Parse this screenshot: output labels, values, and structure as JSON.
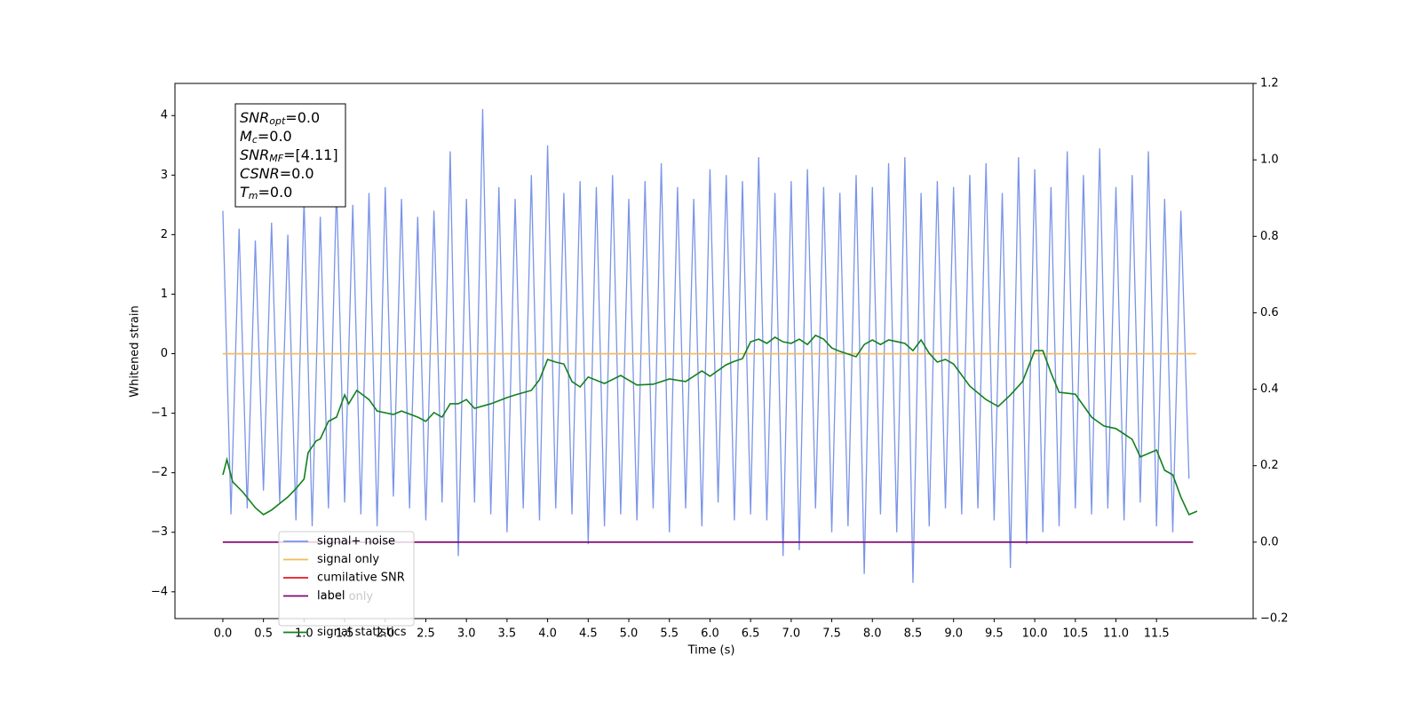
{
  "chart_data": {
    "type": "line",
    "xlabel": "Time (s)",
    "ylabel": "Whitened strain",
    "xlim": [
      -0.59,
      12.69
    ],
    "ylim": [
      -4.45,
      4.54
    ],
    "y2lim": [
      -0.2,
      1.2
    ],
    "xticks": [
      {
        "value": 0,
        "label": "0.0"
      },
      0.5,
      {
        "value": 1,
        "label": "1.0"
      },
      1.5,
      {
        "value": 2,
        "label": "2.0"
      },
      2.5,
      {
        "value": 3,
        "label": "3.0"
      },
      3.5,
      {
        "value": 4,
        "label": "4.0"
      },
      4.5,
      {
        "value": 5,
        "label": "5.0"
      },
      5.5,
      {
        "value": 6,
        "label": "6.0"
      },
      6.5,
      {
        "value": 7,
        "label": "7.0"
      },
      7.5,
      {
        "value": 8,
        "label": "8.0"
      },
      8.5,
      {
        "value": 9,
        "label": "9.0"
      },
      9.5,
      {
        "value": 10,
        "label": "10.0"
      },
      10.5,
      {
        "value": 11,
        "label": "11.0"
      },
      11.5
    ],
    "yticks": [
      {
        "value": -4,
        "label": "−4"
      },
      {
        "value": -3,
        "label": "−3"
      },
      {
        "value": -2,
        "label": "−2"
      },
      {
        "value": -1,
        "label": "−1"
      },
      0,
      1,
      2,
      3,
      4
    ],
    "y2ticks": [
      {
        "value": -0.2,
        "label": "−0.2"
      },
      {
        "value": 0,
        "label": "0.0"
      },
      0.2,
      0.4,
      0.6,
      0.8,
      {
        "value": 1,
        "label": "1.0"
      },
      1.2
    ],
    "legend": "lower left",
    "legend_hidden_text": "label only",
    "annotation": [
      {
        "symbol": "SNR",
        "sub": "opt",
        "text": "=0.0"
      },
      {
        "symbol": "M",
        "sub": "c",
        "text": "=0.0"
      },
      {
        "symbol": "SNR",
        "sub": "MF",
        "text": "=[4.11]"
      },
      {
        "symbol": "CSNR",
        "sub": "",
        "text": "=0.0"
      },
      {
        "symbol": "T",
        "sub": "m",
        "text": "=0.0"
      }
    ],
    "series": [
      {
        "name": "signal+ noise",
        "color": "#7a94e8",
        "x": [
          0,
          0.1,
          0.2,
          0.3,
          0.4,
          0.5,
          0.6,
          0.7,
          0.8,
          0.9,
          1,
          1.1,
          1.2,
          1.3,
          1.4,
          1.5,
          1.6,
          1.7,
          1.8,
          1.9,
          2,
          2.1,
          2.2,
          2.3,
          2.4,
          2.5,
          2.6,
          2.7,
          2.8,
          2.9,
          3,
          3.1,
          3.2,
          3.3,
          3.4,
          3.5,
          3.6,
          3.7,
          3.8,
          3.9,
          4,
          4.1,
          4.2,
          4.3,
          4.4,
          4.5,
          4.6,
          4.7,
          4.8,
          4.9,
          5,
          5.1,
          5.2,
          5.3,
          5.4,
          5.5,
          5.6,
          5.7,
          5.8,
          5.9,
          6,
          6.1,
          6.2,
          6.3,
          6.4,
          6.5,
          6.6,
          6.7,
          6.8,
          6.9,
          7,
          7.1,
          7.2,
          7.3,
          7.4,
          7.5,
          7.6,
          7.7,
          7.8,
          7.9,
          8,
          8.1,
          8.2,
          8.3,
          8.4,
          8.5,
          8.6,
          8.7,
          8.8,
          8.9,
          9,
          9.1,
          9.2,
          9.3,
          9.4,
          9.5,
          9.6,
          9.7,
          9.8,
          9.9,
          10,
          10.1,
          10.2,
          10.3,
          10.4,
          10.5,
          10.6,
          10.7,
          10.8,
          10.9,
          11,
          11.1,
          11.2,
          11.3,
          11.4,
          11.5,
          11.6,
          11.7,
          11.8,
          11.9
        ],
        "values": [
          2.4,
          -2.7,
          2.1,
          -2.6,
          1.9,
          -2.3,
          2.2,
          -2.5,
          2.0,
          -2.8,
          2.6,
          -2.9,
          2.3,
          -2.6,
          2.8,
          -2.5,
          2.5,
          -2.7,
          2.7,
          -2.9,
          2.8,
          -2.4,
          2.6,
          -2.6,
          2.3,
          -2.8,
          2.4,
          -2.5,
          3.4,
          -3.4,
          2.6,
          -2.5,
          4.11,
          -2.7,
          2.8,
          -3.0,
          2.6,
          -2.6,
          3.0,
          -2.8,
          3.5,
          -2.6,
          2.7,
          -2.7,
          2.9,
          -3.2,
          2.8,
          -2.9,
          3.0,
          -2.7,
          2.6,
          -2.8,
          2.9,
          -2.6,
          3.2,
          -3.0,
          2.8,
          -2.6,
          2.6,
          -2.9,
          3.1,
          -2.5,
          3.0,
          -2.8,
          2.9,
          -2.7,
          3.3,
          -2.8,
          2.7,
          -3.4,
          2.9,
          -3.3,
          3.1,
          -2.6,
          2.8,
          -3.0,
          2.7,
          -2.9,
          3.0,
          -3.7,
          2.8,
          -2.7,
          3.2,
          -3.0,
          3.3,
          -3.85,
          2.7,
          -2.9,
          2.9,
          -2.6,
          2.8,
          -2.7,
          3.0,
          -2.6,
          3.2,
          -2.8,
          2.7,
          -3.6,
          3.3,
          -3.2,
          3.1,
          -3.0,
          2.8,
          -2.9,
          3.4,
          -2.6,
          3.0,
          -2.7,
          3.45,
          -2.6,
          2.8,
          -2.8,
          3.0,
          -2.5,
          3.4,
          -2.9,
          2.6,
          -3.0,
          2.4,
          -2.1
        ]
      },
      {
        "name": "signal only",
        "color": "#f5b85a",
        "x": [
          0,
          11.99
        ],
        "values": [
          0,
          0
        ]
      },
      {
        "name": "cumilative SNR",
        "color": "#e8161b",
        "axis": "y2",
        "x": [
          0,
          11.95
        ],
        "values": [
          0,
          0
        ]
      },
      {
        "name": "label",
        "color": "#7b0a7b",
        "axis": "y2",
        "x": [
          0,
          11.95
        ],
        "values": [
          0,
          0
        ]
      },
      {
        "name": "signal statistics",
        "color": "#12801c",
        "axis": "y2",
        "x": [
          0,
          0.05,
          0.12,
          0.25,
          0.4,
          0.5,
          0.6,
          0.8,
          0.9,
          1,
          1.05,
          1.15,
          1.2,
          1.3,
          1.4,
          1.5,
          1.55,
          1.65,
          1.8,
          1.9,
          2.1,
          2.2,
          2.4,
          2.5,
          2.6,
          2.7,
          2.8,
          2.9,
          3,
          3.1,
          3.3,
          3.5,
          3.6,
          3.8,
          3.9,
          4,
          4.1,
          4.2,
          4.3,
          4.4,
          4.5,
          4.7,
          4.9,
          5.1,
          5.3,
          5.5,
          5.7,
          5.9,
          6,
          6.2,
          6.3,
          6.4,
          6.5,
          6.6,
          6.7,
          6.8,
          6.9,
          7,
          7.1,
          7.2,
          7.3,
          7.4,
          7.5,
          7.6,
          7.8,
          7.9,
          8,
          8.1,
          8.2,
          8.4,
          8.5,
          8.6,
          8.7,
          8.8,
          8.9,
          9,
          9.2,
          9.4,
          9.55,
          9.7,
          9.85,
          10,
          10.1,
          10.2,
          10.3,
          10.5,
          10.7,
          10.85,
          11,
          11.2,
          11.3,
          11.5,
          11.6,
          11.7,
          11.8,
          11.9,
          12
        ],
        "values": [
          0.176,
          0.216,
          0.158,
          0.13,
          0.09,
          0.072,
          0.084,
          0.118,
          0.14,
          0.165,
          0.234,
          0.265,
          0.27,
          0.316,
          0.327,
          0.385,
          0.362,
          0.397,
          0.373,
          0.343,
          0.334,
          0.343,
          0.327,
          0.316,
          0.339,
          0.327,
          0.362,
          0.362,
          0.373,
          0.35,
          0.362,
          0.378,
          0.385,
          0.397,
          0.425,
          0.478,
          0.471,
          0.466,
          0.42,
          0.406,
          0.432,
          0.415,
          0.436,
          0.411,
          0.413,
          0.427,
          0.42,
          0.448,
          0.434,
          0.464,
          0.473,
          0.48,
          0.524,
          0.531,
          0.52,
          0.536,
          0.524,
          0.52,
          0.531,
          0.517,
          0.541,
          0.531,
          0.508,
          0.499,
          0.485,
          0.517,
          0.529,
          0.517,
          0.529,
          0.52,
          0.501,
          0.529,
          0.494,
          0.471,
          0.478,
          0.466,
          0.408,
          0.373,
          0.355,
          0.385,
          0.42,
          0.501,
          0.501,
          0.443,
          0.392,
          0.387,
          0.327,
          0.304,
          0.297,
          0.269,
          0.223,
          0.241,
          0.188,
          0.176,
          0.118,
          0.072,
          0.081
        ]
      }
    ]
  }
}
